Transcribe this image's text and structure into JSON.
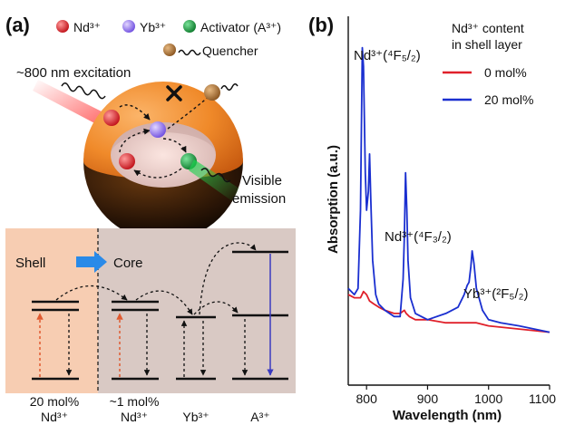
{
  "panel_a": {
    "label": "(a)",
    "legend": {
      "nd": "Nd³⁺",
      "yb": "Yb³⁺",
      "activator": "Activator (A³⁺)",
      "quencher": "Quencher"
    },
    "excitation": "~800 nm excitation",
    "emission_line1": "Visible",
    "emission_line2": "emission",
    "shell": "Shell",
    "core": "Core",
    "columns": [
      {
        "line1": "20 mol%",
        "line2": "Nd³⁺"
      },
      {
        "line1": "~1 mol%",
        "line2": "Nd³⁺"
      },
      {
        "line1": "",
        "line2": "Yb³⁺"
      },
      {
        "line1": "",
        "line2": "A³⁺"
      }
    ],
    "colors": {
      "nd": "#d8202a",
      "yb": "#8a6cf0",
      "activator": "#13963a",
      "quencher": "#a8702a",
      "shell": "#f08a2a",
      "core_panel": "#d9c9c4",
      "shell_panel": "#f7cdb2"
    }
  },
  "panel_b": {
    "label": "(b)",
    "legend_title_line1": "Nd³⁺ content",
    "legend_title_line2": "in shell layer",
    "annotations": {
      "peak1": "Nd³⁺(⁴F₅/₂)",
      "peak2": "Nd³⁺(⁴F₃/₂)",
      "peak3": "Yb³⁺(²F₅/₂)"
    }
  },
  "chart_data": {
    "type": "line",
    "xlabel": "Wavelength (nm)",
    "ylabel": "Absorption (a.u.)",
    "xlim": [
      770,
      1100
    ],
    "ylim": [
      0,
      1
    ],
    "xticks": [
      800,
      900,
      1000,
      1100
    ],
    "series": [
      {
        "name": "0 mol%",
        "color": "#e0202a",
        "points": [
          [
            770,
            0.13
          ],
          [
            780,
            0.12
          ],
          [
            790,
            0.12
          ],
          [
            795,
            0.14
          ],
          [
            800,
            0.13
          ],
          [
            805,
            0.11
          ],
          [
            812,
            0.1
          ],
          [
            820,
            0.09
          ],
          [
            830,
            0.08
          ],
          [
            845,
            0.07
          ],
          [
            855,
            0.07
          ],
          [
            862,
            0.08
          ],
          [
            865,
            0.07
          ],
          [
            870,
            0.06
          ],
          [
            880,
            0.05
          ],
          [
            900,
            0.05
          ],
          [
            930,
            0.04
          ],
          [
            960,
            0.04
          ],
          [
            980,
            0.04
          ],
          [
            1000,
            0.03
          ],
          [
            1050,
            0.02
          ],
          [
            1100,
            0.01
          ]
        ]
      },
      {
        "name": "20 mol%",
        "color": "#1a2fd0",
        "points": [
          [
            770,
            0.15
          ],
          [
            780,
            0.13
          ],
          [
            786,
            0.15
          ],
          [
            790,
            0.4
          ],
          [
            793,
            0.92
          ],
          [
            795,
            0.86
          ],
          [
            798,
            0.52
          ],
          [
            800,
            0.4
          ],
          [
            803,
            0.46
          ],
          [
            805,
            0.58
          ],
          [
            807,
            0.43
          ],
          [
            810,
            0.24
          ],
          [
            815,
            0.13
          ],
          [
            820,
            0.1
          ],
          [
            830,
            0.08
          ],
          [
            845,
            0.06
          ],
          [
            855,
            0.06
          ],
          [
            860,
            0.18
          ],
          [
            862,
            0.32
          ],
          [
            864,
            0.52
          ],
          [
            866,
            0.4
          ],
          [
            868,
            0.24
          ],
          [
            872,
            0.12
          ],
          [
            880,
            0.07
          ],
          [
            900,
            0.05
          ],
          [
            930,
            0.07
          ],
          [
            950,
            0.09
          ],
          [
            960,
            0.13
          ],
          [
            965,
            0.16
          ],
          [
            968,
            0.17
          ],
          [
            971,
            0.22
          ],
          [
            973,
            0.27
          ],
          [
            976,
            0.23
          ],
          [
            980,
            0.15
          ],
          [
            990,
            0.08
          ],
          [
            1000,
            0.05
          ],
          [
            1020,
            0.04
          ],
          [
            1050,
            0.03
          ],
          [
            1100,
            0.01
          ]
        ]
      }
    ]
  }
}
